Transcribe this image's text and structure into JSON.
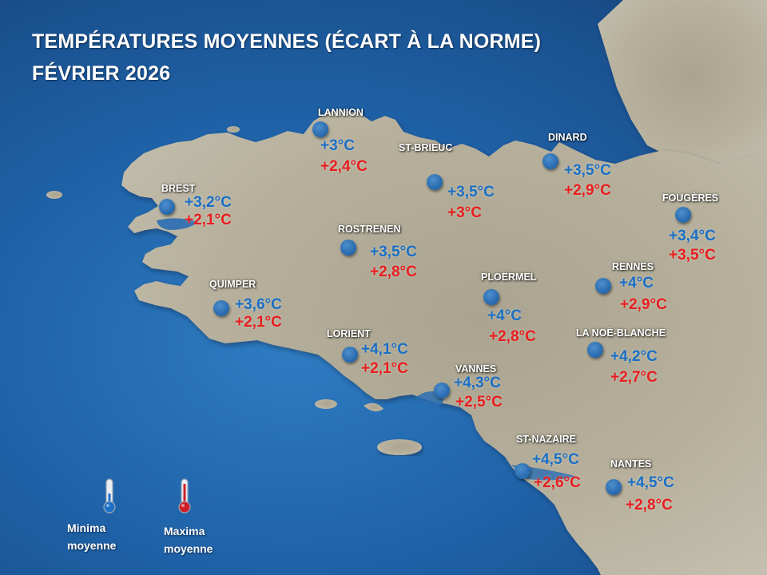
{
  "title_line1": "TEMPÉRATURES MOYENNES (ÉCART À LA NORME)",
  "title_line2": "FÉVRIER 2026",
  "colors": {
    "minima": "#1a6fc4",
    "maxima": "#e81e1e",
    "sea": "#1f62a8",
    "land": "#b3ad9a"
  },
  "stations": [
    {
      "id": "lannion",
      "name": "LANNION",
      "tmin": "+3°C",
      "tmax": "+2,4°C"
    },
    {
      "id": "st-brieuc",
      "name": "ST-BRIEUC",
      "tmin": "+3,5°C",
      "tmax": "+3°C"
    },
    {
      "id": "dinard",
      "name": "DINARD",
      "tmin": "+3,5°C",
      "tmax": "+2,9°C"
    },
    {
      "id": "brest",
      "name": "BREST",
      "tmin": "+3,2°C",
      "tmax": "+2,1°C"
    },
    {
      "id": "fougeres",
      "name": "FOUGÈRES",
      "tmin": "+3,4°C",
      "tmax": "+3,5°C"
    },
    {
      "id": "rostrenen",
      "name": "ROSTRENEN",
      "tmin": "+3,5°C",
      "tmax": "+2,8°C"
    },
    {
      "id": "rennes",
      "name": "RENNES",
      "tmin": "+4°C",
      "tmax": "+2,9°C"
    },
    {
      "id": "quimper",
      "name": "QUIMPER",
      "tmin": "+3,6°C",
      "tmax": "+2,1°C"
    },
    {
      "id": "ploermel",
      "name": "PLOËRMEL",
      "tmin": "+4°C",
      "tmax": "+2,8°C"
    },
    {
      "id": "lorient",
      "name": "LORIENT",
      "tmin": "+4,1°C",
      "tmax": "+2,1°C"
    },
    {
      "id": "la-noe-blanche",
      "name": "LA NOË-BLANCHE",
      "tmin": "+4,2°C",
      "tmax": "+2,7°C"
    },
    {
      "id": "vannes",
      "name": "VANNES",
      "tmin": "+4,3°C",
      "tmax": "+2,5°C"
    },
    {
      "id": "st-nazaire",
      "name": "ST-NAZAIRE",
      "tmin": "+4,5°C",
      "tmax": "+2,6°C"
    },
    {
      "id": "nantes",
      "name": "NANTES",
      "tmin": "+4,5°C",
      "tmax": "+2,8°C"
    }
  ],
  "legend": {
    "min_line1": "Minima",
    "min_line2": "moyenne",
    "min_icon": "thermometer-cold-icon",
    "max_line1": "Maxima",
    "max_line2": "moyenne",
    "max_icon": "thermometer-hot-icon"
  }
}
